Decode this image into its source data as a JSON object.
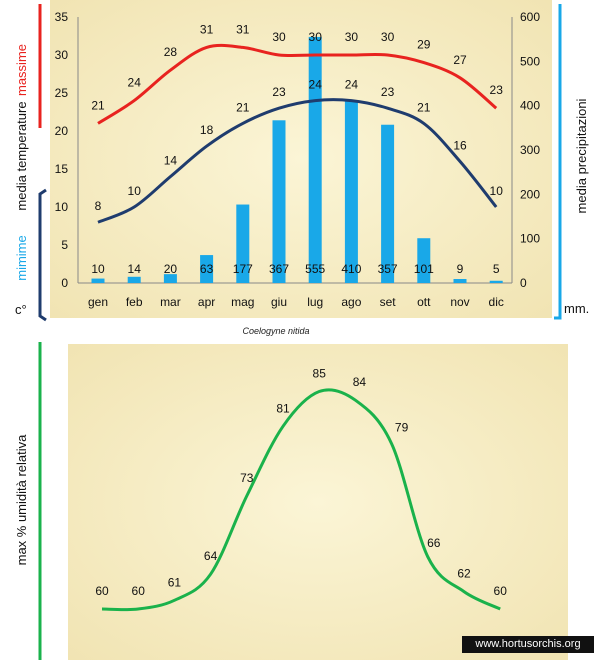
{
  "caption": "Coelogyne nitida",
  "watermark": "www.hortusorchis.org",
  "chart_data": [
    {
      "type": "bar",
      "categories": [
        "gen",
        "feb",
        "mar",
        "apr",
        "mag",
        "giu",
        "lug",
        "ago",
        "set",
        "ott",
        "nov",
        "dic"
      ],
      "ylim_left": [
        0,
        35
      ],
      "yticks_left": [
        0,
        5,
        10,
        15,
        20,
        25,
        30,
        35
      ],
      "ylim_right": [
        0,
        600
      ],
      "yticks_right": [
        0,
        100,
        200,
        300,
        400,
        500,
        600
      ],
      "ylabels": {
        "max_word": "massime",
        "mean_word": "media  temperature",
        "min_word": "mimime",
        "unit_left": "c°",
        "right": "media  precipitazioni",
        "unit_right": "mm."
      },
      "series": [
        {
          "name": "massime",
          "type": "line",
          "axis": "left",
          "values": [
            21,
            24,
            28,
            31,
            31,
            30,
            30,
            30,
            30,
            29,
            27,
            23
          ]
        },
        {
          "name": "media",
          "type": "line",
          "axis": "left",
          "values": [
            8,
            10,
            14,
            18,
            21,
            23,
            24,
            24,
            23,
            21,
            16,
            10
          ]
        },
        {
          "name": "media  precipitazioni",
          "type": "bar",
          "axis": "right",
          "values": [
            10,
            14,
            20,
            63,
            177,
            367,
            555,
            410,
            357,
            101,
            9,
            5
          ]
        }
      ],
      "colors": {
        "max": "#e8231f",
        "mean": "#1f3c6e",
        "precip": "#19a8e8",
        "min_label": "#19a8e8",
        "plot_bg": "#f7eec2"
      }
    },
    {
      "type": "line",
      "categories": [
        "gen",
        "feb",
        "mar",
        "apr",
        "mag",
        "giu",
        "lug",
        "ago",
        "set",
        "ott",
        "nov",
        "dic"
      ],
      "ylabel": "max  %  umidità relativa",
      "values": [
        60,
        60,
        61,
        64,
        73,
        81,
        85,
        84,
        79,
        66,
        62,
        60
      ],
      "colors": {
        "line": "#1ab24b",
        "plot_bg": "#f7eec2"
      }
    }
  ]
}
